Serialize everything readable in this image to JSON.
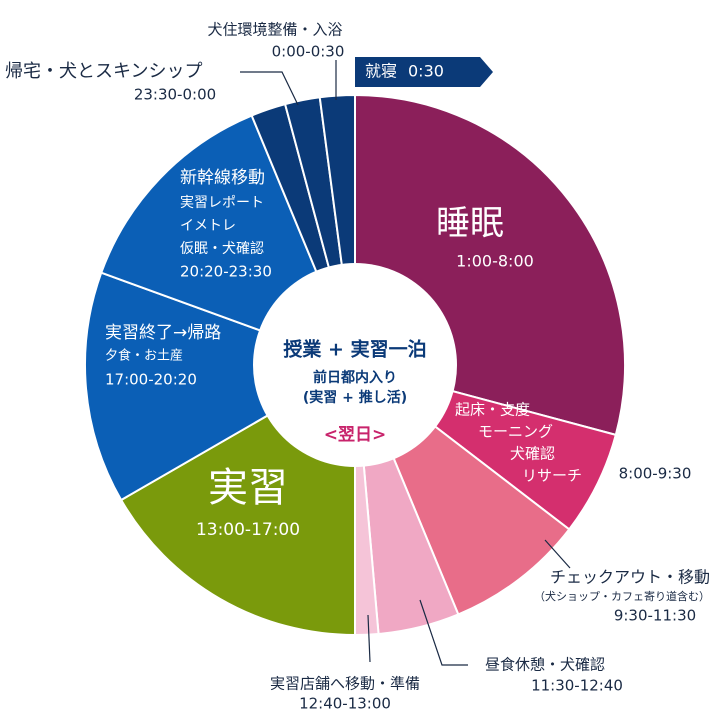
{
  "chart_data": {
    "type": "pie",
    "donut": true,
    "segments": [
      {
        "name": "睡眠",
        "details": [],
        "time": "1:00-8:00",
        "value": 420,
        "color": "#8b1f5a"
      },
      {
        "name": "起床・支度",
        "details": [
          "モーニング",
          "犬確認",
          "リサーチ"
        ],
        "time": "8:00-9:30",
        "value": 90,
        "color": "#d42f6e"
      },
      {
        "name": "チェックアウト・移動",
        "details": [
          "（犬ショップ・カフェ寄り道含む）"
        ],
        "time": "9:30-11:30",
        "value": 120,
        "color": "#e86d89"
      },
      {
        "name": "昼食休憩・犬確認",
        "details": [],
        "time": "11:30-12:40",
        "value": 70,
        "color": "#f0a8c4"
      },
      {
        "name": "実習店舗へ移動・準備",
        "details": [],
        "time": "12:40-13:00",
        "value": 20,
        "color": "#f5c4d8"
      },
      {
        "name": "実習",
        "details": [],
        "time": "13:00-17:00",
        "value": 240,
        "color": "#7a9a0c"
      },
      {
        "name": "実習終了→帰路",
        "details": [
          "夕食・お土産"
        ],
        "time": "17:00-20:20",
        "value": 200,
        "color": "#0b5fb6"
      },
      {
        "name": "新幹線移動",
        "details": [
          "実習レポート",
          "イメトレ",
          "仮眠・犬確認"
        ],
        "time": "20:20-23:30",
        "value": 190,
        "color": "#0b5fb6"
      },
      {
        "name": "帰宅・犬とスキンシップ",
        "details": [],
        "time": "23:30-0:00",
        "value": 30,
        "color": "#0b3a78"
      },
      {
        "name": "犬住環境整備・入浴",
        "details": [],
        "time": "0:00-0:30",
        "value": 30,
        "color": "#0b3a78"
      },
      {
        "name": "就寝",
        "details": [],
        "time": "0:30",
        "value": 30,
        "color": "#0b3a78"
      }
    ],
    "center": {
      "title": "授業 + 実習一泊",
      "lines": [
        "前日都内入り",
        "(実習 + 推し活)"
      ],
      "day": "<翌日>"
    }
  }
}
